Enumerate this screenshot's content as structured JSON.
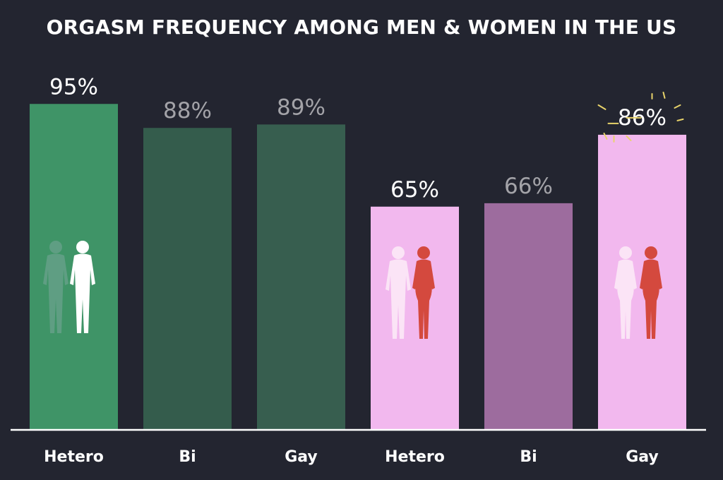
{
  "chart_data": {
    "type": "bar",
    "title": "ORGASM FREQUENCY AMONG MEN & WOMEN IN THE US",
    "xlabel": "",
    "ylabel": "",
    "ylim": [
      0,
      100
    ],
    "categories": [
      "Hetero",
      "Bi",
      "Gay",
      "Hetero",
      "Bi",
      "Gay"
    ],
    "values": [
      95,
      88,
      89,
      65,
      66,
      86
    ],
    "value_labels": [
      "95%",
      "88%",
      "89%",
      "65%",
      "66%",
      "86%"
    ],
    "bar_colors": [
      "#3f9467",
      "#345c4c",
      "#375e4f",
      "#f2b8ee",
      "#9d6c9e",
      "#f2b8ee"
    ],
    "value_label_colors": [
      "#ffffff",
      "#a3a3a8",
      "#a3a3a8",
      "#ffffff",
      "#a3a3a8",
      "#ffffff"
    ],
    "icons": [
      "couple-men-icon",
      "",
      "",
      "couple-man-woman-icon",
      "",
      "couple-women-icon"
    ],
    "highlight": "sparkle-icon",
    "grid": false,
    "legend": "none"
  }
}
